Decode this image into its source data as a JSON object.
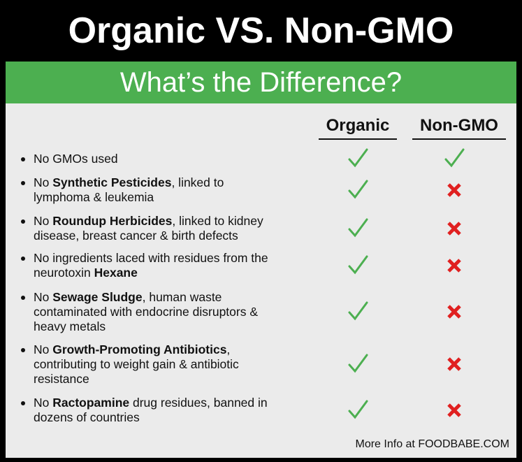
{
  "header": {
    "title": "Organic VS. Non-GMO",
    "subtitle": "What’s the Difference?"
  },
  "table": {
    "columns": [
      "Organic",
      "Non-GMO"
    ],
    "rows": [
      {
        "lines": [
          [
            {
              "text": "No GMOs used",
              "bold": false
            }
          ]
        ],
        "organic": true,
        "non_gmo": true
      },
      {
        "lines": [
          [
            {
              "text": "No ",
              "bold": false
            },
            {
              "text": "Synthetic Pesticides",
              "bold": true
            },
            {
              "text": ", linked to",
              "bold": false
            }
          ],
          [
            {
              "text": "lymphoma & leukemia",
              "bold": false
            }
          ]
        ],
        "organic": true,
        "non_gmo": false
      },
      {
        "lines": [
          [
            {
              "text": "No ",
              "bold": false
            },
            {
              "text": "Roundup Herbicides",
              "bold": true
            },
            {
              "text": ", linked to kidney",
              "bold": false
            }
          ],
          [
            {
              "text": "disease, breast cancer & birth defects",
              "bold": false
            }
          ]
        ],
        "organic": true,
        "non_gmo": false
      },
      {
        "lines": [
          [
            {
              "text": "No ingredients laced with residues from the",
              "bold": false
            }
          ],
          [
            {
              "text": "neurotoxin ",
              "bold": false
            },
            {
              "text": "Hexane",
              "bold": true
            }
          ]
        ],
        "organic": true,
        "non_gmo": false
      },
      {
        "lines": [
          [
            {
              "text": "No ",
              "bold": false
            },
            {
              "text": "Sewage Sludge",
              "bold": true
            },
            {
              "text": ", human waste",
              "bold": false
            }
          ],
          [
            {
              "text": "contaminated with endocrine disruptors &",
              "bold": false
            }
          ],
          [
            {
              "text": "heavy metals",
              "bold": false
            }
          ]
        ],
        "organic": true,
        "non_gmo": false
      },
      {
        "lines": [
          [
            {
              "text": "No ",
              "bold": false
            },
            {
              "text": "Growth-Promoting Antibiotics",
              "bold": true
            },
            {
              "text": ",",
              "bold": false
            }
          ],
          [
            {
              "text": "contributing to weight gain & antibiotic",
              "bold": false
            }
          ],
          [
            {
              "text": "resistance",
              "bold": false
            }
          ]
        ],
        "organic": true,
        "non_gmo": false
      },
      {
        "lines": [
          [
            {
              "text": "No ",
              "bold": false
            },
            {
              "text": "Ractopamine",
              "bold": true
            },
            {
              "text": " drug residues, banned in",
              "bold": false
            }
          ],
          [
            {
              "text": "dozens of countries",
              "bold": false
            }
          ]
        ],
        "organic": true,
        "non_gmo": false
      }
    ]
  },
  "footer": "More Info at FOODBABE.COM"
}
